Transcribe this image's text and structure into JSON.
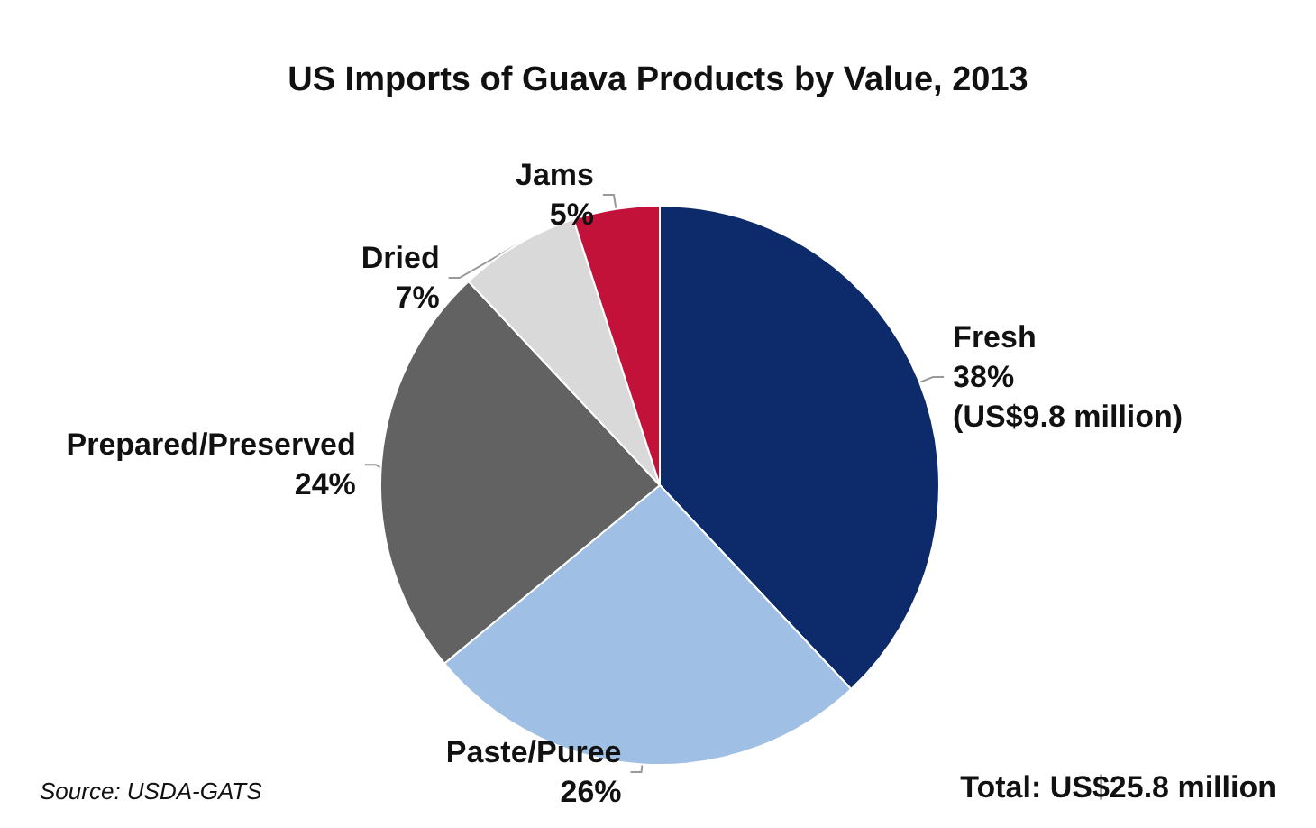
{
  "chart_data": {
    "type": "pie",
    "title": "US Imports of Guava Products by Value, 2013",
    "categories": [
      "Fresh",
      "Paste/Puree",
      "Prepared/Preserved",
      "Dried",
      "Jams"
    ],
    "values": [
      38,
      26,
      24,
      7,
      5
    ],
    "colors": [
      "#0d2b6b",
      "#9fbfe5",
      "#626262",
      "#d9d9d9",
      "#c3123a"
    ],
    "value_labels": [
      "38%\n(US$9.8 million)",
      "26%",
      "24%",
      "7%",
      "5%"
    ],
    "annotations": [
      "Source: USDA-GATS",
      "Total: US$25.8 million"
    ]
  }
}
